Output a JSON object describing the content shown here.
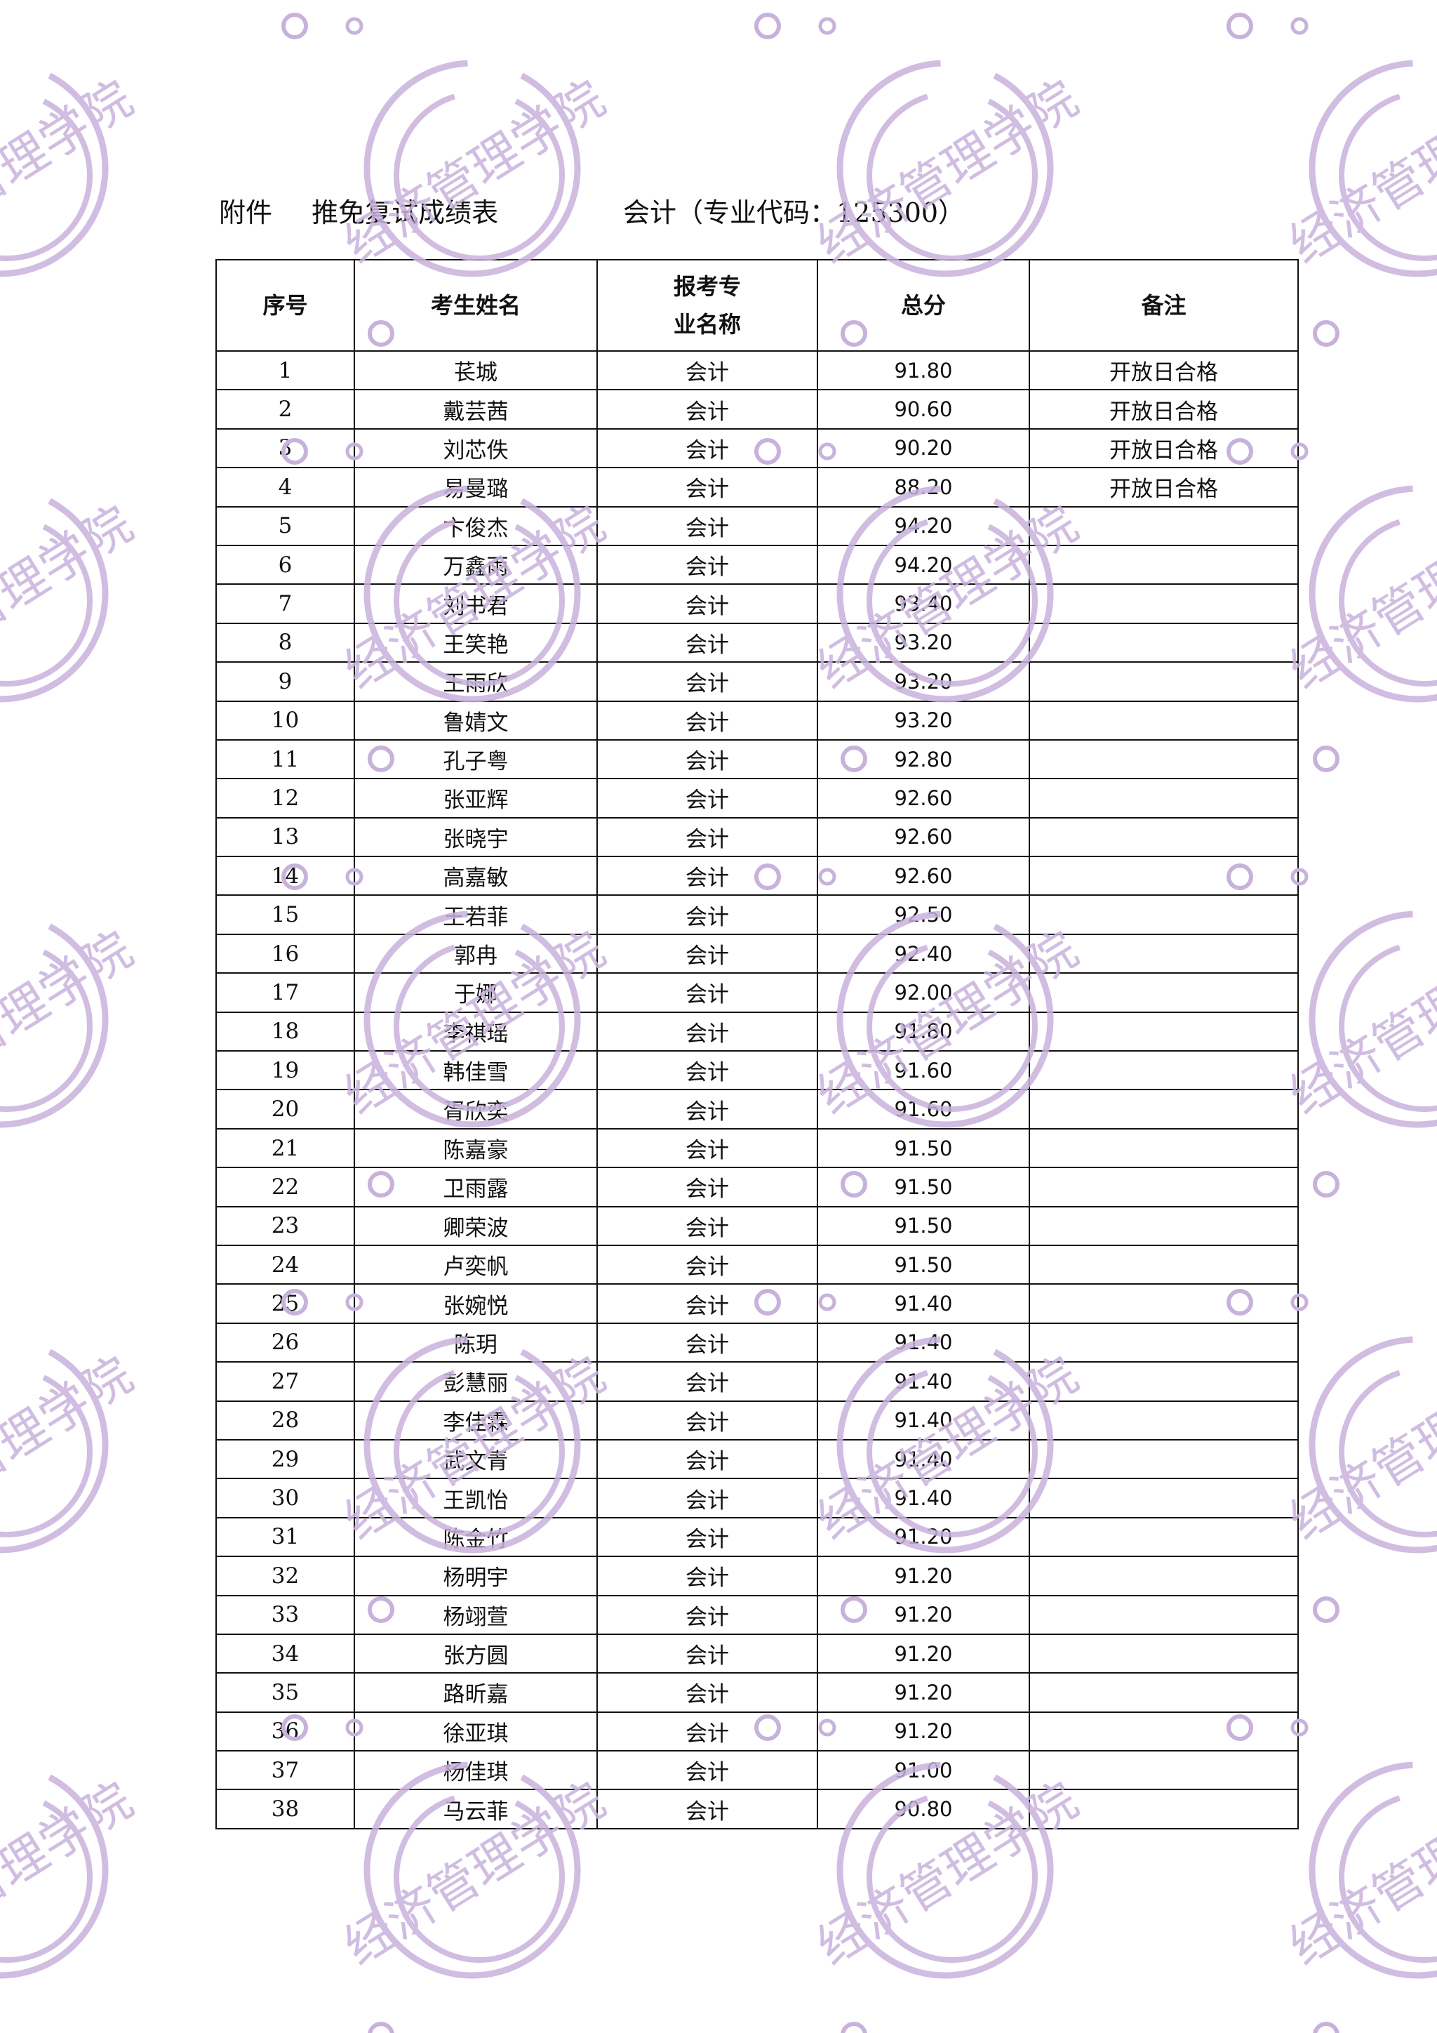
{
  "title": {
    "prefix": "附件",
    "name": "推免复试成绩表",
    "major": "会计（专业代码：125300）"
  },
  "table": {
    "headers": [
      "序号",
      "考生姓名",
      "报考专业名称",
      "总分",
      "备注"
    ],
    "rows": [
      [
        "1",
        "苌城",
        "会计",
        "91.80",
        "开放日合格"
      ],
      [
        "2",
        "戴芸茜",
        "会计",
        "90.60",
        "开放日合格"
      ],
      [
        "3",
        "刘芯佚",
        "会计",
        "90.20",
        "开放日合格"
      ],
      [
        "4",
        "易曼璐",
        "会计",
        "88.20",
        "开放日合格"
      ],
      [
        "5",
        "卞俊杰",
        "会计",
        "94.20",
        ""
      ],
      [
        "6",
        "万鑫雨",
        "会计",
        "94.20",
        ""
      ],
      [
        "7",
        "刘书君",
        "会计",
        "93.40",
        ""
      ],
      [
        "8",
        "王笑艳",
        "会计",
        "93.20",
        ""
      ],
      [
        "9",
        "王雨欣",
        "会计",
        "93.20",
        ""
      ],
      [
        "10",
        "鲁婧文",
        "会计",
        "93.20",
        ""
      ],
      [
        "11",
        "孔子粤",
        "会计",
        "92.80",
        ""
      ],
      [
        "12",
        "张亚辉",
        "会计",
        "92.60",
        ""
      ],
      [
        "13",
        "张晓宇",
        "会计",
        "92.60",
        ""
      ],
      [
        "14",
        "高嘉敏",
        "会计",
        "92.60",
        ""
      ],
      [
        "15",
        "王若菲",
        "会计",
        "92.50",
        ""
      ],
      [
        "16",
        "郭冉",
        "会计",
        "92.40",
        ""
      ],
      [
        "17",
        "于娜",
        "会计",
        "92.00",
        ""
      ],
      [
        "18",
        "李祺瑶",
        "会计",
        "91.80",
        ""
      ],
      [
        "19",
        "韩佳雪",
        "会计",
        "91.60",
        ""
      ],
      [
        "20",
        "胥欣奕",
        "会计",
        "91.60",
        ""
      ],
      [
        "21",
        "陈嘉豪",
        "会计",
        "91.50",
        ""
      ],
      [
        "22",
        "卫雨露",
        "会计",
        "91.50",
        ""
      ],
      [
        "23",
        "卿荣波",
        "会计",
        "91.50",
        ""
      ],
      [
        "24",
        "卢奕帆",
        "会计",
        "91.50",
        ""
      ],
      [
        "25",
        "张婉悦",
        "会计",
        "91.40",
        ""
      ],
      [
        "26",
        "陈玥",
        "会计",
        "91.40",
        ""
      ],
      [
        "27",
        "彭慧丽",
        "会计",
        "91.40",
        ""
      ],
      [
        "28",
        "李佳霖",
        "会计",
        "91.40",
        ""
      ],
      [
        "29",
        "武文青",
        "会计",
        "91.40",
        ""
      ],
      [
        "30",
        "王凯怡",
        "会计",
        "91.40",
        ""
      ],
      [
        "31",
        "陈金竹",
        "会计",
        "91.20",
        ""
      ],
      [
        "32",
        "杨明宇",
        "会计",
        "91.20",
        ""
      ],
      [
        "33",
        "杨翊萱",
        "会计",
        "91.20",
        ""
      ],
      [
        "34",
        "张方圆",
        "会计",
        "91.20",
        ""
      ],
      [
        "35",
        "路昕嘉",
        "会计",
        "91.20",
        ""
      ],
      [
        "36",
        "徐亚琪",
        "会计",
        "91.20",
        ""
      ],
      [
        "37",
        "杨佳琪",
        "会计",
        "91.00",
        ""
      ],
      [
        "38",
        "马云菲",
        "会计",
        "90.80",
        ""
      ]
    ]
  },
  "watermark": {
    "text": "经济管理学院",
    "color": "#c8b2dc"
  }
}
